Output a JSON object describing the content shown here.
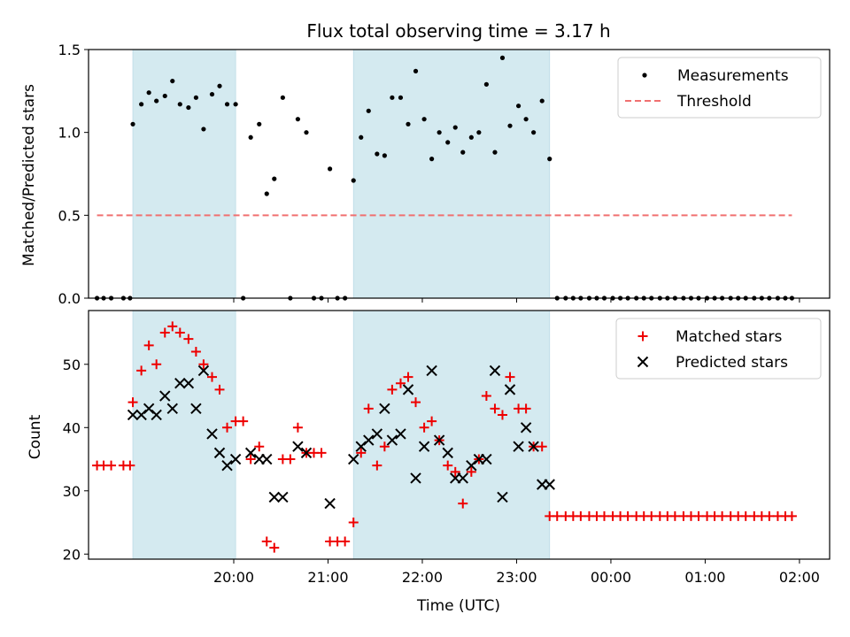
{
  "title": "Flux total observing time = 3.17 h",
  "colors": {
    "shade": "#d4eaf0",
    "measurement": "#000000",
    "threshold": "#f07070",
    "matched": "#ee0000",
    "predicted": "#000000"
  },
  "chart_data": [
    {
      "type": "scatter",
      "ylabel": "Matched/Predicted stars",
      "xlabel": "",
      "x_unit": "hours since 19:00 UTC",
      "xlim": [
        -0.54,
        7.32
      ],
      "ylim": [
        0,
        1.5
      ],
      "yticks": [
        0.0,
        0.5,
        1.0,
        1.5
      ],
      "ytick_labels": [
        "0.0",
        "0.5",
        "1.0",
        "1.5"
      ],
      "threshold": {
        "name": "Threshold",
        "value": 0.5,
        "x_range": [
          -0.45,
          6.92
        ]
      },
      "legend": {
        "position": "top-right",
        "entries": [
          "Measurements",
          "Threshold"
        ]
      },
      "series": [
        {
          "name": "Measurements",
          "x": [
            -0.45,
            -0.38,
            -0.3,
            -0.17,
            -0.1,
            -0.07,
            0.02,
            0.1,
            0.18,
            0.27,
            0.35,
            0.43,
            0.52,
            0.6,
            0.68,
            0.77,
            0.85,
            0.93,
            1.02,
            1.1,
            1.18,
            1.27,
            1.35,
            1.43,
            1.52,
            1.6,
            1.68,
            1.77,
            1.85,
            1.93,
            2.02,
            2.1,
            2.18,
            2.27,
            2.35,
            2.43,
            2.52,
            2.6,
            2.68,
            2.77,
            2.85,
            2.93,
            3.02,
            3.1,
            3.18,
            3.27,
            3.35,
            3.43,
            3.52,
            3.6,
            3.68,
            3.77,
            3.85,
            3.93,
            4.02,
            4.1,
            4.18,
            4.27,
            4.35,
            4.43,
            4.52,
            4.6,
            4.68,
            4.77,
            4.85,
            4.93,
            5.02,
            5.1,
            5.18,
            5.27,
            5.35,
            5.43,
            5.52,
            5.6,
            5.68,
            5.77,
            5.85,
            5.93,
            6.02,
            6.1,
            6.18,
            6.27,
            6.35,
            6.43,
            6.52,
            6.6,
            6.68,
            6.77,
            6.85,
            6.92
          ],
          "y": [
            0,
            0,
            0,
            0,
            0,
            1.05,
            1.17,
            1.24,
            1.19,
            1.22,
            1.31,
            1.17,
            1.15,
            1.21,
            1.02,
            1.23,
            1.28,
            1.17,
            1.17,
            0,
            0.97,
            1.05,
            0.63,
            0.72,
            1.21,
            0,
            1.08,
            1.0,
            0,
            0,
            0.78,
            0,
            0,
            0.71,
            0.97,
            1.13,
            0.87,
            0.86,
            1.21,
            1.21,
            1.05,
            1.37,
            1.08,
            0.84,
            1.0,
            0.94,
            1.03,
            0.88,
            0.97,
            1.0,
            1.29,
            0.88,
            1.45,
            1.04,
            1.16,
            1.08,
            1.0,
            1.19,
            0.84,
            0,
            0,
            0,
            0,
            0,
            0,
            0,
            0,
            0,
            0,
            0,
            0,
            0,
            0,
            0,
            0,
            0,
            0,
            0,
            0,
            0,
            0,
            0,
            0,
            0,
            0,
            0,
            0,
            0,
            0,
            0
          ]
        }
      ]
    },
    {
      "type": "scatter",
      "ylabel": "Count",
      "xlabel": "Time (UTC)",
      "x_unit": "hours since 19:00 UTC",
      "xlim": [
        -0.54,
        7.32
      ],
      "ylim": [
        19.2,
        58.5
      ],
      "yticks": [
        20,
        30,
        40,
        50
      ],
      "ytick_labels": [
        "20",
        "30",
        "40",
        "50"
      ],
      "xticks": [
        1,
        2,
        3,
        4,
        5,
        6,
        7
      ],
      "xtick_labels": [
        "20:00",
        "21:00",
        "22:00",
        "23:00",
        "00:00",
        "01:00",
        "02:00"
      ],
      "legend": {
        "position": "top-right",
        "entries": [
          "Matched stars",
          "Predicted stars"
        ]
      },
      "series": [
        {
          "name": "Matched stars",
          "x": [
            -0.45,
            -0.38,
            -0.3,
            -0.17,
            -0.1,
            -0.07,
            0.02,
            0.1,
            0.18,
            0.27,
            0.35,
            0.43,
            0.52,
            0.6,
            0.68,
            0.77,
            0.85,
            0.93,
            1.02,
            1.1,
            1.18,
            1.27,
            1.35,
            1.43,
            1.52,
            1.6,
            1.68,
            1.77,
            1.85,
            1.93,
            2.02,
            2.1,
            2.18,
            2.27,
            2.35,
            2.43,
            2.52,
            2.6,
            2.68,
            2.77,
            2.85,
            2.93,
            3.02,
            3.1,
            3.18,
            3.27,
            3.35,
            3.43,
            3.52,
            3.6,
            3.68,
            3.77,
            3.85,
            3.93,
            4.02,
            4.1,
            4.18,
            4.27,
            4.35,
            4.43,
            4.52,
            4.6,
            4.68,
            4.77,
            4.85,
            4.93,
            5.02,
            5.1,
            5.18,
            5.27,
            5.35,
            5.43,
            5.52,
            5.6,
            5.68,
            5.77,
            5.85,
            5.93,
            6.02,
            6.1,
            6.18,
            6.27,
            6.35,
            6.43,
            6.52,
            6.6,
            6.68,
            6.77,
            6.85,
            6.92
          ],
          "y": [
            34,
            34,
            34,
            34,
            34,
            44,
            49,
            53,
            50,
            55,
            56,
            55,
            54,
            52,
            50,
            48,
            46,
            40,
            41,
            41,
            35,
            37,
            22,
            21,
            35,
            35,
            40,
            36,
            36,
            36,
            22,
            22,
            22,
            25,
            36,
            43,
            34,
            37,
            46,
            47,
            48,
            44,
            40,
            41,
            38,
            34,
            33,
            28,
            33,
            35,
            45,
            43,
            42,
            48,
            43,
            43,
            37,
            37,
            26,
            26,
            26,
            26,
            26,
            26,
            26,
            26,
            26,
            26,
            26,
            26,
            26,
            26,
            26,
            26,
            26,
            26,
            26,
            26,
            26,
            26,
            26,
            26,
            26,
            26,
            26,
            26,
            26,
            26,
            26,
            26
          ]
        },
        {
          "name": "Predicted stars",
          "x": [
            -0.07,
            0.02,
            0.1,
            0.18,
            0.27,
            0.35,
            0.43,
            0.52,
            0.6,
            0.68,
            0.77,
            0.85,
            0.93,
            1.02,
            1.18,
            1.27,
            1.35,
            1.43,
            1.52,
            1.68,
            1.77,
            2.02,
            2.27,
            2.35,
            2.43,
            2.52,
            2.6,
            2.68,
            2.77,
            2.85,
            2.93,
            3.02,
            3.1,
            3.18,
            3.27,
            3.35,
            3.43,
            3.52,
            3.6,
            3.68,
            3.77,
            3.85,
            3.93,
            4.02,
            4.1,
            4.18,
            4.27,
            4.35
          ],
          "y": [
            42,
            42,
            43,
            42,
            45,
            43,
            47,
            47,
            43,
            49,
            39,
            36,
            34,
            35,
            36,
            35,
            35,
            29,
            29,
            37,
            36,
            28,
            35,
            37,
            38,
            39,
            43,
            38,
            39,
            46,
            32,
            37,
            49,
            38,
            36,
            32,
            32,
            34,
            35,
            35,
            49,
            29,
            46,
            37,
            40,
            37,
            31,
            31
          ]
        }
      ]
    }
  ]
}
